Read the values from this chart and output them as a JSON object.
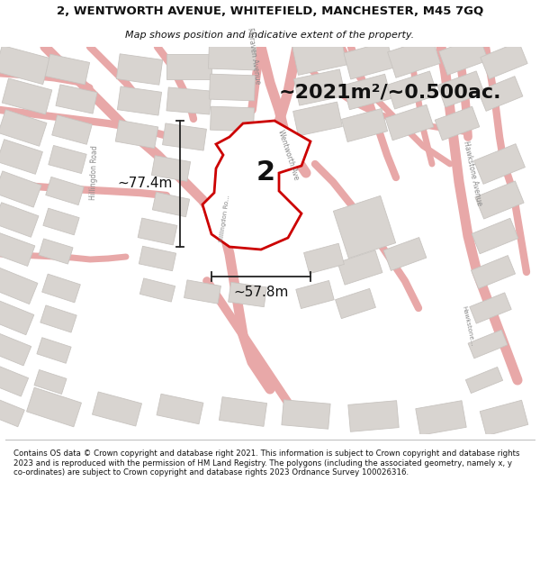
{
  "title_line1": "2, WENTWORTH AVENUE, WHITEFIELD, MANCHESTER, M45 7GQ",
  "title_line2": "Map shows position and indicative extent of the property.",
  "area_text": "~2021m²/~0.500ac.",
  "dim_height": "~77.4m",
  "dim_width": "~57.8m",
  "property_number": "2",
  "footer_text": "Contains OS data © Crown copyright and database right 2021. This information is subject to Crown copyright and database rights 2023 and is reproduced with the permission of HM Land Registry. The polygons (including the associated geometry, namely x, y co-ordinates) are subject to Crown copyright and database rights 2023 Ordnance Survey 100026316.",
  "map_bg": "#f7f4f2",
  "road_color": "#e8a8a8",
  "road_fill": "#f0dada",
  "building_color": "#d8d4d0",
  "building_edge": "#c8c4c0",
  "property_fill": "#ffffff",
  "property_edge": "#cc0000",
  "title_bg": "#ffffff",
  "footer_bg": "#ffffff",
  "text_color": "#333333",
  "road_label_color": "#888888"
}
